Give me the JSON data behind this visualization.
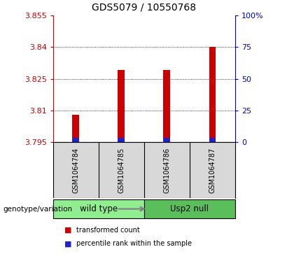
{
  "title": "GDS5079 / 10550768",
  "samples": [
    "GSM1064784",
    "GSM1064785",
    "GSM1064786",
    "GSM1064787"
  ],
  "group_names": [
    "wild type",
    "Usp2 null"
  ],
  "group_colors": [
    "#90ee90",
    "#5abf5a"
  ],
  "red_values": [
    3.808,
    3.829,
    3.829,
    3.84
  ],
  "blue_values": [
    3.797,
    3.797,
    3.797,
    3.797
  ],
  "base_value": 3.795,
  "ylim_min": 3.795,
  "ylim_max": 3.855,
  "yticks_left": [
    3.795,
    3.81,
    3.825,
    3.84,
    3.855
  ],
  "yticks_right_pct": [
    0,
    25,
    50,
    75,
    100
  ],
  "left_tick_color": "#cc0000",
  "right_tick_color": "#0000cc",
  "bar_color_red": "#cc0000",
  "bar_color_blue": "#2222cc",
  "bar_width": 0.15,
  "legend_red": "transformed count",
  "legend_blue": "percentile rank within the sample",
  "genotype_label": "genotype/variation",
  "sample_bg_color": "#d8d8d8",
  "plot_bg_color": "#ffffff",
  "title_fontsize": 10,
  "tick_fontsize": 8,
  "sample_fontsize": 7,
  "group_fontsize": 8.5
}
